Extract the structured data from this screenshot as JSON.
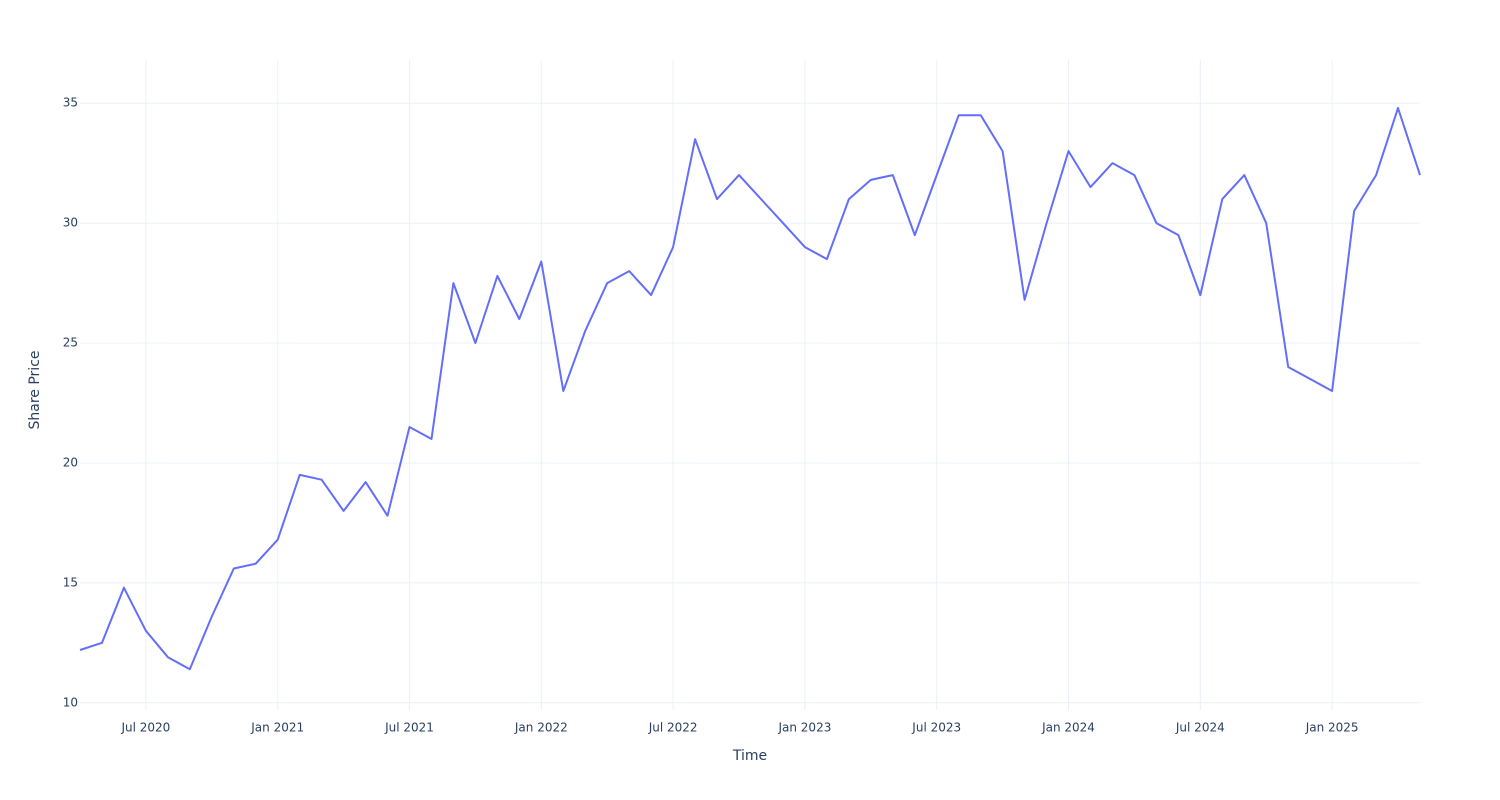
{
  "chart_data": {
    "type": "line",
    "xlabel": "Time",
    "ylabel": "Share Price",
    "x": [
      "2020-04",
      "2020-05",
      "2020-06",
      "2020-07",
      "2020-08",
      "2020-09",
      "2020-10",
      "2020-11",
      "2020-12",
      "2021-01",
      "2021-02",
      "2021-03",
      "2021-04",
      "2021-05",
      "2021-06",
      "2021-07",
      "2021-08",
      "2021-09",
      "2021-10",
      "2021-11",
      "2021-12",
      "2022-01",
      "2022-02",
      "2022-03",
      "2022-04",
      "2022-05",
      "2022-06",
      "2022-07",
      "2022-08",
      "2022-09",
      "2022-10",
      "2022-11",
      "2022-12",
      "2023-01",
      "2023-02",
      "2023-03",
      "2023-04",
      "2023-05",
      "2023-06",
      "2023-07",
      "2023-08",
      "2023-09",
      "2023-10",
      "2023-11",
      "2023-12",
      "2024-01",
      "2024-02",
      "2024-03",
      "2024-04",
      "2024-05",
      "2024-06",
      "2024-07",
      "2024-08",
      "2024-09",
      "2024-10",
      "2024-11",
      "2024-12",
      "2025-01",
      "2025-02",
      "2025-03",
      "2025-04",
      "2025-05"
    ],
    "series": [
      {
        "name": "Share Price",
        "color": "#636efa",
        "values": [
          12.2,
          12.5,
          14.8,
          13.0,
          11.9,
          11.4,
          13.6,
          15.6,
          15.8,
          16.8,
          19.5,
          19.3,
          18.0,
          19.2,
          17.8,
          21.5,
          21.0,
          27.5,
          25.0,
          27.8,
          26.0,
          28.4,
          23.0,
          25.5,
          27.5,
          28.0,
          27.0,
          29.0,
          33.5,
          31.0,
          32.0,
          31.0,
          30.0,
          29.0,
          28.5,
          31.0,
          31.8,
          32.0,
          29.5,
          32.0,
          34.5,
          34.5,
          33.0,
          26.8,
          30.0,
          33.0,
          31.5,
          32.5,
          32.0,
          30.0,
          29.5,
          27.0,
          31.0,
          32.0,
          30.0,
          24.0,
          23.5,
          23.0,
          30.5,
          32.0,
          34.8,
          32.0
        ]
      }
    ],
    "xlim": [
      "2020-04",
      "2025-05"
    ],
    "xticks": [
      {
        "value": "2020-07",
        "label": "Jul 2020"
      },
      {
        "value": "2021-01",
        "label": "Jan 2021"
      },
      {
        "value": "2021-07",
        "label": "Jul 2021"
      },
      {
        "value": "2022-01",
        "label": "Jan 2022"
      },
      {
        "value": "2022-07",
        "label": "Jul 2022"
      },
      {
        "value": "2023-01",
        "label": "Jan 2023"
      },
      {
        "value": "2023-07",
        "label": "Jul 2023"
      },
      {
        "value": "2024-01",
        "label": "Jan 2024"
      },
      {
        "value": "2024-07",
        "label": "Jul 2024"
      },
      {
        "value": "2025-01",
        "label": "Jan 2025"
      }
    ],
    "ylim": [
      9.7,
      36.8
    ],
    "yticks": [
      10,
      15,
      20,
      25,
      30,
      35
    ],
    "grid": true
  }
}
